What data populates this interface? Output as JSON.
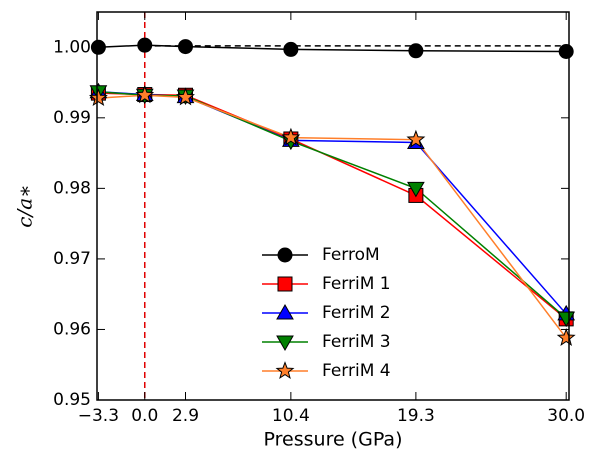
{
  "chart_data": {
    "type": "line",
    "xlabel": "Pressure (GPa)",
    "ylabel": "c/a∗",
    "x": [
      -3.3,
      0.0,
      2.9,
      10.4,
      19.3,
      30.0
    ],
    "series": [
      {
        "name": "FerroM",
        "color": "#000000",
        "marker": "circle",
        "values": [
          1.0,
          1.0003,
          1.0001,
          0.9997,
          0.9995,
          0.9994
        ]
      },
      {
        "name": "FerriM 1",
        "color": "#ff0000",
        "marker": "square",
        "values": [
          0.9935,
          0.9933,
          0.9932,
          0.987,
          0.979,
          0.9615
        ]
      },
      {
        "name": "FerriM 2",
        "color": "#0000ff",
        "marker": "triangle-up",
        "values": [
          0.9937,
          0.9933,
          0.993,
          0.9868,
          0.9865,
          0.9622
        ]
      },
      {
        "name": "FerriM 3",
        "color": "#008000",
        "marker": "triangle-down",
        "values": [
          0.9937,
          0.9932,
          0.9931,
          0.9867,
          0.98,
          0.9616
        ]
      },
      {
        "name": "FerriM 4",
        "color": "#ff7f2a",
        "marker": "star",
        "values": [
          0.9928,
          0.9932,
          0.9929,
          0.9872,
          0.9869,
          0.9588
        ]
      }
    ],
    "hline": {
      "value": 1.0002,
      "color": "#000000",
      "from_x": 0.0
    },
    "vline": {
      "value": 0.0,
      "color": "#e00000"
    },
    "xlim": [
      -3.4,
      30.2
    ],
    "ylim": [
      0.95,
      1.005
    ],
    "xticks": [
      {
        "value": -3.3,
        "label": "−3.3"
      },
      {
        "value": 0.0,
        "label": "0.0"
      },
      2.9,
      10.4,
      19.3,
      {
        "value": 30.0,
        "label": "30.0"
      }
    ],
    "yticks": [
      0.95,
      0.96,
      0.97,
      0.98,
      0.99,
      {
        "value": 1.0,
        "label": "1.00"
      }
    ],
    "legend": "lower-center"
  }
}
